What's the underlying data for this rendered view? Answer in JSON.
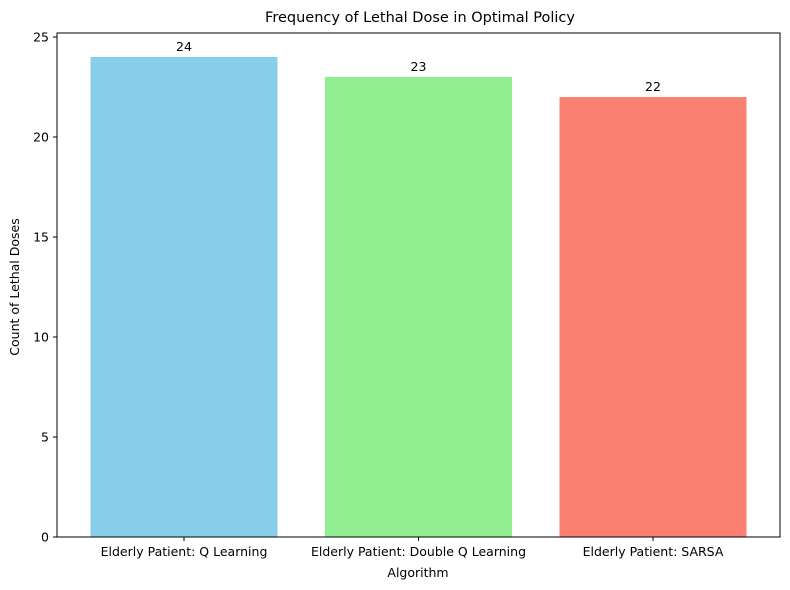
{
  "chart_data": {
    "type": "bar",
    "title": "Frequency of Lethal Dose in Optimal Policy",
    "xlabel": "Algorithm",
    "ylabel": "Count of Lethal Doses",
    "categories": [
      "Elderly Patient: Q Learning",
      "Elderly Patient: Double Q Learning",
      "Elderly Patient: SARSA"
    ],
    "values": [
      24,
      23,
      22
    ],
    "data_labels": [
      "24",
      "23",
      "22"
    ],
    "colors": [
      "#87ceeb",
      "#90ee90",
      "#fa8072"
    ],
    "ylim": [
      0,
      25.2
    ],
    "yticks": [
      0,
      5,
      10,
      15,
      20,
      25
    ],
    "grid": false,
    "legend": "none"
  }
}
